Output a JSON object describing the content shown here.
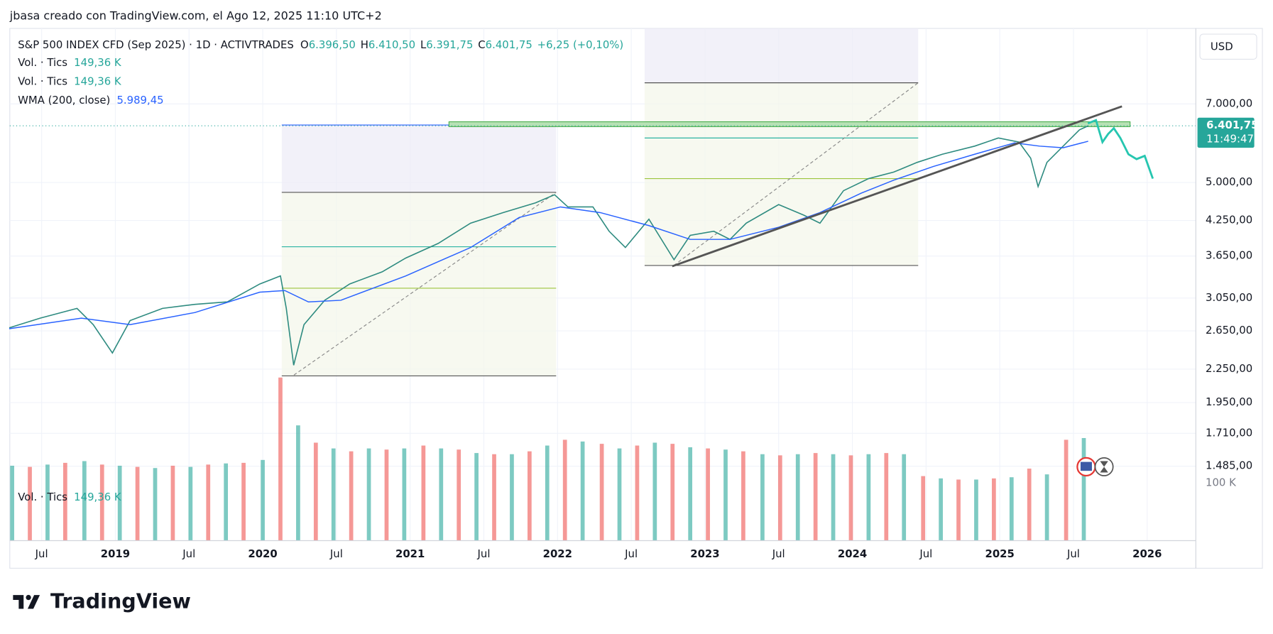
{
  "header": "jbasa creado con TradingView.com, el Ago 12, 2025 11:10 UTC+2",
  "brand": "TradingView",
  "chart_data": {
    "type": "line",
    "title": "S&P 500 INDEX CFD (Sep 2025) · 1D · ACTIVTRADES",
    "ohlc": [
      {
        "label": "O",
        "value": "6.396,50"
      },
      {
        "label": "H",
        "value": "6.410,50"
      },
      {
        "label": "L",
        "value": "6.391,75"
      },
      {
        "label": "C",
        "value": "6.401,75"
      }
    ],
    "change": "+6,25 (+0,10%)",
    "indicators": [
      {
        "label": "Vol. · Tics",
        "value": "149,36 K"
      },
      {
        "label": "Vol. · Tics",
        "value": "149,36 K"
      }
    ],
    "currency": "USD",
    "last_price": "6.401,75",
    "countdown": "11:49:47",
    "log_scale": true,
    "grid": true,
    "xlim": [
      2018.284,
      2026.33
    ],
    "xticks": [
      {
        "value": 2018.5,
        "label": "Jul"
      },
      2019,
      {
        "value": 2019.5,
        "label": "Jul"
      },
      2020,
      {
        "value": 2020.5,
        "label": "Jul"
      },
      2021,
      {
        "value": 2021.5,
        "label": "Jul"
      },
      2022,
      {
        "value": 2022.5,
        "label": "Jul"
      },
      2023,
      {
        "value": 2023.5,
        "label": "Jul"
      },
      2024,
      {
        "value": 2024.5,
        "label": "Jul"
      },
      2025,
      {
        "value": 2025.5,
        "label": "Jul"
      },
      2026
    ],
    "ylim": [
      1080,
      9670
    ],
    "yticks": [
      {
        "value": 7000,
        "label": "7.000,00"
      },
      {
        "value": 5000,
        "label": "5.000,00"
      },
      {
        "value": 4250,
        "label": "4.250,00"
      },
      {
        "value": 3650,
        "label": "3.650,00"
      },
      {
        "value": 3050,
        "label": "3.050,00"
      },
      {
        "value": 2650,
        "label": "2.650,00"
      },
      {
        "value": 2250,
        "label": "2.250,00"
      },
      {
        "value": 1950,
        "label": "1.950,00"
      },
      {
        "value": 1710,
        "label": "1.710,00"
      },
      {
        "value": 1485,
        "label": "1.485,00"
      }
    ],
    "series": [
      {
        "color": "#2e8b80",
        "x": [
          2018.28,
          2018.49,
          2018.74,
          2018.85,
          2018.98,
          2019.1,
          2019.32,
          2019.54,
          2019.76,
          2019.98,
          2020.12,
          2020.16,
          2020.21,
          2020.28,
          2020.42,
          2020.59,
          2020.81,
          2020.97,
          2021.19,
          2021.41,
          2021.63,
          2021.85,
          2021.98,
          2022.07,
          2022.24,
          2022.35,
          2022.46,
          2022.62,
          2022.79,
          2022.9,
          2023.06,
          2023.17,
          2023.28,
          2023.5,
          2023.67,
          2023.78,
          2023.94,
          2024.11,
          2024.28,
          2024.44,
          2024.61,
          2024.83,
          2024.99,
          2025.13,
          2025.21,
          2025.26,
          2025.32,
          2025.43,
          2025.54,
          2025.6
        ],
        "values": [
          2685,
          2799,
          2918,
          2722,
          2411,
          2770,
          2918,
          2969,
          3000,
          3239,
          3353,
          2918,
          2288,
          2722,
          3021,
          3239,
          3412,
          3619,
          3853,
          4202,
          4396,
          4583,
          4745,
          4504,
          4504,
          4059,
          3786,
          4275,
          3594,
          3989,
          4059,
          3920,
          4202,
          4551,
          4350,
          4202,
          4828,
          5086,
          5229,
          5452,
          5644,
          5844,
          6050,
          5946,
          5548,
          4913,
          5452,
          5844,
          6264,
          6374
        ]
      },
      {
        "name": "WMA (200, close)",
        "legend_value": "5.989,45",
        "color": "#2962ff",
        "x": [
          2018.28,
          2018.77,
          2019.1,
          2019.54,
          2019.98,
          2020.15,
          2020.31,
          2020.53,
          2020.97,
          2021.41,
          2021.74,
          2022.02,
          2022.29,
          2022.62,
          2022.9,
          2023.17,
          2023.5,
          2023.78,
          2024.06,
          2024.28,
          2024.55,
          2024.83,
          2025.1,
          2025.27,
          2025.43,
          2025.6
        ],
        "values": [
          2675,
          2799,
          2722,
          2867,
          3128,
          3150,
          3000,
          3021,
          3353,
          3786,
          4305,
          4504,
          4396,
          4159,
          3920,
          3920,
          4130,
          4396,
          4778,
          5050,
          5358,
          5644,
          5925,
          5844,
          5803,
          5967
        ]
      }
    ],
    "volume": {
      "name": "Vol. · Tics",
      "legend_value": "149,36 K",
      "colors": [
        "#26a69a",
        "#ef5350"
      ],
      "ylim": [
        0,
        200
      ],
      "yticks": [
        {
          "value": 100,
          "label": "100 K"
        }
      ],
      "x": [
        2018.3,
        2018.42,
        2018.54,
        2018.66,
        2018.79,
        2018.91,
        2019.03,
        2019.15,
        2019.27,
        2019.39,
        2019.51,
        2019.63,
        2019.75,
        2019.87,
        2020.0,
        2020.12,
        2020.24,
        2020.36,
        2020.48,
        2020.6,
        2020.72,
        2020.84,
        2020.96,
        2021.09,
        2021.21,
        2021.33,
        2021.45,
        2021.57,
        2021.69,
        2021.81,
        2021.93,
        2022.05,
        2022.17,
        2022.3,
        2022.42,
        2022.54,
        2022.66,
        2022.78,
        2022.9,
        2023.02,
        2023.14,
        2023.26,
        2023.39,
        2023.51,
        2023.63,
        2023.75,
        2023.87,
        2023.99,
        2024.11,
        2024.23,
        2024.35,
        2024.48,
        2024.6,
        2024.72,
        2024.84,
        2024.96,
        2025.08,
        2025.2,
        2025.32,
        2025.45,
        2025.57
      ],
      "values": [
        130,
        128,
        132,
        135,
        138,
        132,
        130,
        128,
        126,
        130,
        128,
        132,
        134,
        135,
        140,
        283,
        200,
        170,
        160,
        155,
        160,
        158,
        160,
        165,
        160,
        158,
        152,
        150,
        150,
        155,
        165,
        175,
        172,
        168,
        160,
        165,
        170,
        168,
        162,
        160,
        158,
        155,
        150,
        148,
        150,
        152,
        150,
        148,
        150,
        152,
        150,
        112,
        108,
        106,
        106,
        108,
        110,
        125,
        115,
        175,
        178
      ]
    }
  }
}
